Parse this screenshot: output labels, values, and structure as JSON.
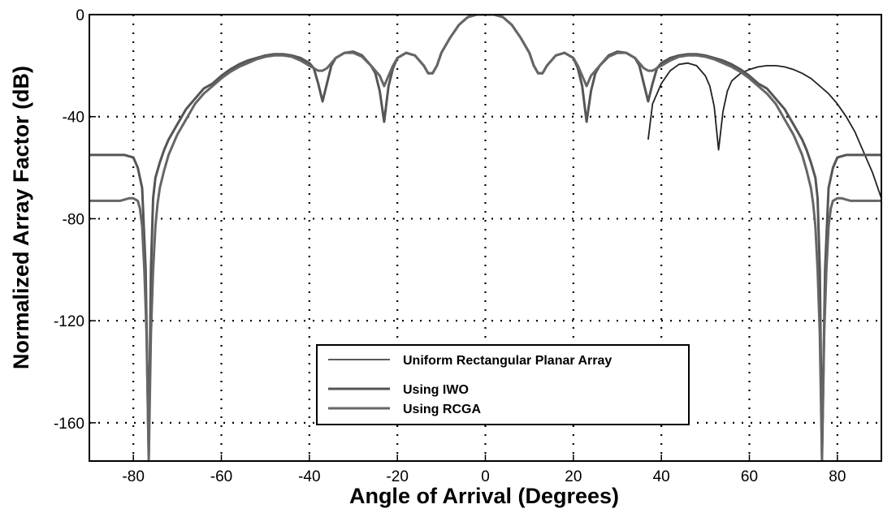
{
  "chart_data": {
    "type": "line",
    "xlabel": "Angle of Arrival (Degrees)",
    "ylabel": "Normalized Array Factor (dB)",
    "xlim": [
      -90,
      90
    ],
    "ylim": [
      -175,
      0
    ],
    "xticks": [
      -80,
      -60,
      -40,
      -20,
      0,
      20,
      40,
      60,
      80
    ],
    "yticks": [
      0,
      -40,
      -80,
      -120,
      -160
    ],
    "grid": true,
    "grid_style": "dotted",
    "legend_position": "lower-center",
    "series": [
      {
        "name": "Uniform Rectangular Planar Array",
        "color": "#222222",
        "x": [
          37,
          38,
          40,
          42,
          44,
          46,
          48,
          50,
          51,
          52,
          53,
          54,
          55,
          56,
          58,
          60,
          62,
          64,
          66,
          68,
          70,
          72,
          74,
          76,
          78,
          80,
          82,
          84,
          86,
          88,
          90
        ],
        "y": [
          -49,
          -35,
          -27,
          -22,
          -19.5,
          -19,
          -20,
          -24,
          -28,
          -36,
          -53,
          -38,
          -30,
          -26,
          -23,
          -21.5,
          -20.5,
          -20,
          -20,
          -20.5,
          -21.5,
          -23,
          -25,
          -28,
          -31,
          -35,
          -40,
          -46,
          -54,
          -62,
          -72
        ]
      },
      {
        "name": "Using IWO",
        "color": "#555555",
        "x": [
          -90,
          -82,
          -80,
          -79,
          -78,
          -77.2,
          -76.5,
          -76,
          -75.5,
          -75,
          -74,
          -73,
          -72,
          -70,
          -68,
          -66,
          -64,
          -62,
          -60,
          -58,
          -56,
          -54,
          -52,
          -50,
          -48,
          -46,
          -44,
          -42,
          -40,
          -39,
          -38,
          -37,
          -36,
          -35,
          -34,
          -32,
          -30,
          -28,
          -26,
          -25,
          -24,
          -23,
          -22,
          -21,
          -20,
          -18,
          -16,
          -14,
          -13,
          -12,
          -11,
          -10,
          -8,
          -6,
          -4,
          -2,
          0,
          2,
          4,
          6,
          8,
          10,
          11,
          12,
          13,
          14,
          16,
          18,
          20,
          21,
          22,
          23,
          24,
          25,
          26,
          28,
          30,
          32,
          34,
          35,
          36,
          37,
          38,
          39,
          40,
          42,
          44,
          46,
          48,
          50,
          52,
          54,
          56,
          58,
          60,
          62,
          64,
          66,
          68,
          70,
          72,
          73,
          74,
          75,
          75.5,
          76,
          76.5,
          77.2,
          78,
          79,
          80,
          82,
          90
        ],
        "y": [
          -55,
          -55,
          -56,
          -60,
          -68,
          -100,
          -173,
          -100,
          -72,
          -64,
          -58,
          -53,
          -49,
          -43,
          -37,
          -33,
          -29,
          -27,
          -24,
          -21.5,
          -19.5,
          -18,
          -17,
          -16,
          -15.5,
          -15.5,
          -16,
          -17,
          -19,
          -21,
          -27,
          -34,
          -27,
          -20,
          -17,
          -15,
          -14.5,
          -16,
          -20,
          -23,
          -30,
          -42,
          -28,
          -21,
          -17,
          -15,
          -16,
          -20,
          -23,
          -23,
          -20,
          -15,
          -9,
          -4,
          -1,
          0,
          0,
          0,
          -1,
          -4,
          -9,
          -15,
          -20,
          -23,
          -23,
          -20,
          -16,
          -15,
          -17,
          -21,
          -28,
          -42,
          -30,
          -23,
          -20,
          -16,
          -14.5,
          -15,
          -17,
          -20,
          -27,
          -34,
          -27,
          -21,
          -19,
          -17,
          -16,
          -15.5,
          -15.5,
          -16,
          -17,
          -18,
          -19.5,
          -21.5,
          -24,
          -27,
          -29,
          -33,
          -37,
          -43,
          -49,
          -53,
          -58,
          -64,
          -72,
          -100,
          -173,
          -100,
          -68,
          -60,
          -56,
          -55,
          -55
        ]
      },
      {
        "name": "Using RCGA",
        "color": "#666666",
        "x": [
          -90,
          -83,
          -81,
          -80,
          -79,
          -78.5,
          -78,
          -77.5,
          -77,
          -76.5,
          -76,
          -75.5,
          -75,
          -74.5,
          -74,
          -73,
          -72,
          -70,
          -68,
          -66,
          -64,
          -62,
          -60,
          -58,
          -56,
          -54,
          -52,
          -50,
          -48,
          -46,
          -44,
          -42,
          -40,
          -39,
          -38,
          -37,
          -36,
          -35,
          -34,
          -32,
          -30,
          -28,
          -26,
          -24,
          -23.5,
          -23,
          -22.5,
          -22,
          -21,
          -20,
          -18,
          -16,
          -14,
          -13,
          -12,
          -11,
          -10,
          -8,
          -6,
          -4,
          -2,
          0,
          2,
          4,
          6,
          8,
          10,
          11,
          12,
          13,
          14,
          16,
          18,
          20,
          21,
          22,
          22.5,
          23,
          23.5,
          24,
          26,
          28,
          30,
          32,
          34,
          35,
          36,
          37,
          38,
          39,
          40,
          42,
          44,
          46,
          48,
          50,
          52,
          54,
          56,
          58,
          60,
          62,
          64,
          66,
          68,
          70,
          72,
          73,
          74,
          74.5,
          75,
          75.5,
          76,
          76.5,
          77,
          77.5,
          78,
          78.5,
          79,
          80,
          81,
          83,
          90
        ],
        "y": [
          -73,
          -73,
          -72,
          -72,
          -73,
          -76,
          -83,
          -100,
          -125,
          -175,
          -125,
          -100,
          -83,
          -74,
          -68,
          -61,
          -55,
          -47,
          -41,
          -35,
          -31,
          -28,
          -25,
          -22.5,
          -20.5,
          -19,
          -17.5,
          -16.5,
          -16,
          -16,
          -16.5,
          -18,
          -20,
          -21,
          -22,
          -22,
          -21,
          -19,
          -17,
          -15,
          -15,
          -16.5,
          -20,
          -24,
          -26,
          -28,
          -26,
          -24,
          -20,
          -17,
          -15,
          -16,
          -20,
          -23,
          -23,
          -20,
          -15,
          -9,
          -4,
          -1,
          0,
          0,
          0,
          -1,
          -4,
          -9,
          -15,
          -20,
          -23,
          -23,
          -20,
          -16,
          -15,
          -17,
          -20,
          -24,
          -26,
          -28,
          -26,
          -24,
          -20,
          -16.5,
          -15,
          -15,
          -17,
          -19,
          -21,
          -22,
          -22,
          -21,
          -20,
          -18,
          -16.5,
          -16,
          -16,
          -16.5,
          -17.5,
          -19,
          -20.5,
          -22.5,
          -25,
          -28,
          -31,
          -35,
          -41,
          -47,
          -55,
          -61,
          -68,
          -74,
          -83,
          -100,
          -125,
          -175,
          -125,
          -100,
          -83,
          -76,
          -73,
          -72,
          -72,
          -73,
          -73
        ]
      }
    ]
  }
}
